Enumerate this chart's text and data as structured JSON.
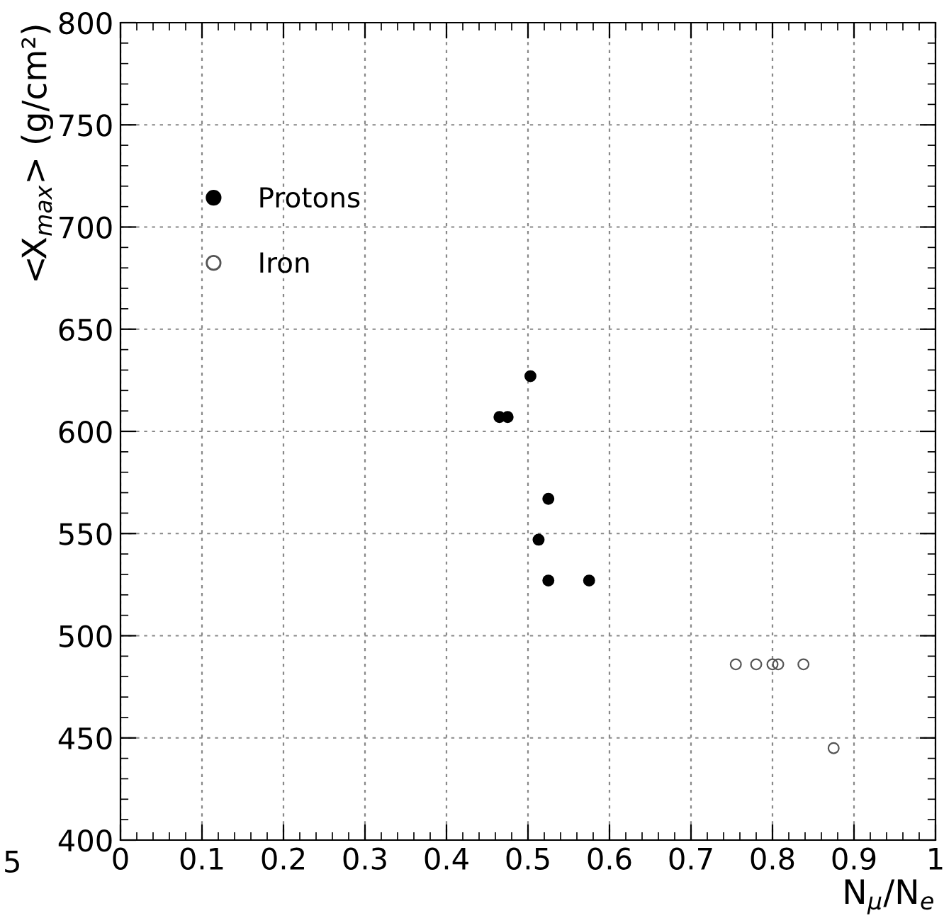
{
  "chart_data": {
    "type": "scatter",
    "xlabel": "N$_{μ}$/N$_{e}$",
    "ylabel": "<X$_{max}$> (g/cm²)",
    "series": [
      {
        "name": "Protons",
        "color": "#000000",
        "marker": "circle",
        "x": [
          0.503,
          0.465,
          0.475,
          0.525,
          0.513,
          0.525,
          0.575
        ],
        "values": [
          627,
          607,
          607,
          567,
          547,
          527,
          527
        ]
      },
      {
        "name": "Iron",
        "color": "#555555",
        "marker": "circle",
        "x": [
          0.755,
          0.78,
          0.8,
          0.807,
          0.838,
          0.875
        ],
        "values": [
          486,
          486,
          486,
          486,
          486,
          445
        ]
      }
    ],
    "xlim": [
      0,
      1
    ],
    "ylim": [
      400,
      800
    ],
    "xticks": [
      0,
      0.1,
      0.2,
      0.3,
      0.4,
      0.5,
      0.6,
      0.7,
      0.8,
      0.9,
      1
    ],
    "yticks": [
      400,
      450,
      500,
      550,
      600,
      650,
      700,
      750,
      800
    ],
    "grid": true,
    "legend": "top left",
    "annotations": [
      "5"
    ]
  }
}
